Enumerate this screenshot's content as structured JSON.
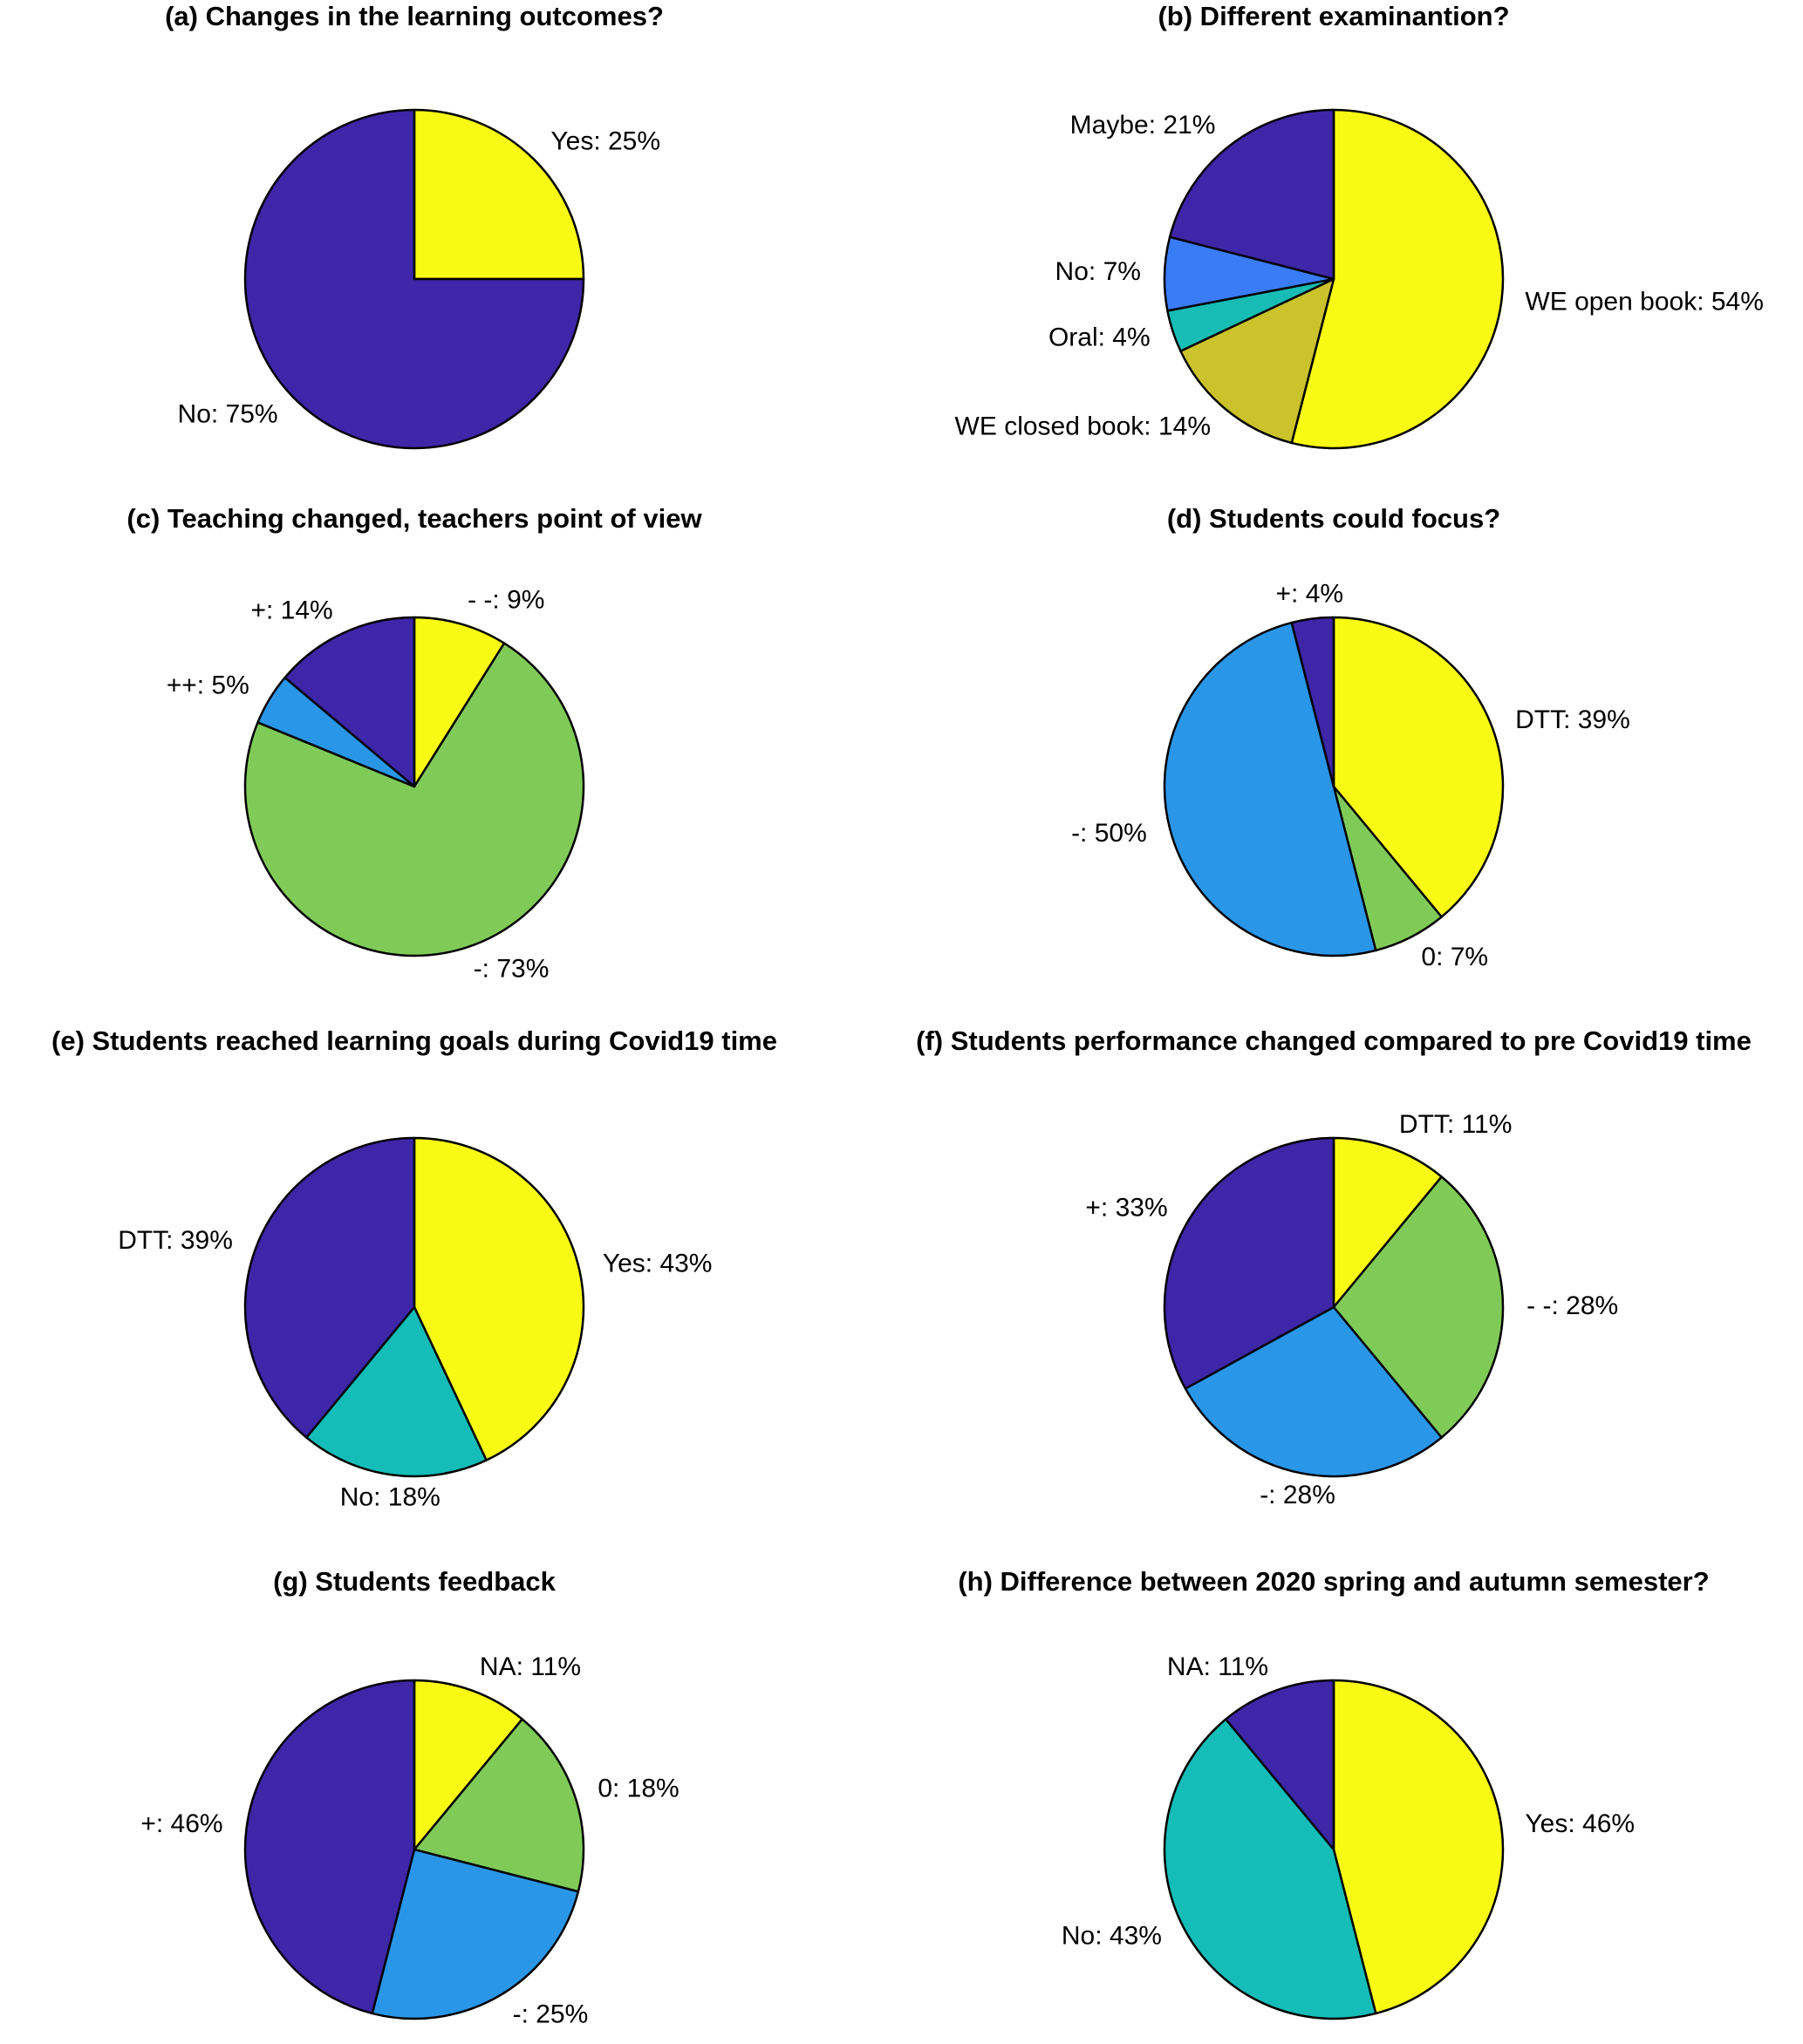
{
  "chart_data": [
    {
      "type": "pie",
      "title": "(a) Changes in the learning outcomes?",
      "slices": [
        {
          "label": "Yes: 25%",
          "name": "Yes",
          "value": 25,
          "color": "#f9fa14"
        },
        {
          "label": "No: 75%",
          "name": "No",
          "value": 75,
          "color": "#3e26a8"
        }
      ]
    },
    {
      "type": "pie",
      "title": "(b) Different examinantion?",
      "slices": [
        {
          "label": "WE open book: 54%",
          "name": "WE open book",
          "value": 54,
          "color": "#f9fa14"
        },
        {
          "label": "WE closed book: 14%",
          "name": "WE closed book",
          "value": 14,
          "color": "#cbc22c"
        },
        {
          "label": "Oral: 4%",
          "name": "Oral",
          "value": 4,
          "color": "#17bdb5"
        },
        {
          "label": "No: 7%",
          "name": "No",
          "value": 7,
          "color": "#3a7cf6"
        },
        {
          "label": "Maybe: 21%",
          "name": "Maybe",
          "value": 21,
          "color": "#3e26a8"
        }
      ]
    },
    {
      "type": "pie",
      "title": "(c) Teaching changed, teachers point of view",
      "slices": [
        {
          "label": "- -: 9%",
          "name": "- -",
          "value": 9,
          "color": "#f9fa14"
        },
        {
          "label": "-: 73%",
          "name": "-",
          "value": 73,
          "color": "#80cb58"
        },
        {
          "label": "++: 5%",
          "name": "++",
          "value": 5,
          "color": "#2a96e8"
        },
        {
          "label": "+: 14%",
          "name": "+",
          "value": 14,
          "color": "#3e26a8"
        }
      ]
    },
    {
      "type": "pie",
      "title": "(d) Students could focus?",
      "slices": [
        {
          "label": "DTT: 39%",
          "name": "DTT",
          "value": 39,
          "color": "#f9fa14"
        },
        {
          "label": "0: 7%",
          "name": "0",
          "value": 7,
          "color": "#80cb58"
        },
        {
          "label": "-: 50%",
          "name": "-",
          "value": 50,
          "color": "#2a96e8"
        },
        {
          "label": "+: 4%",
          "name": "+",
          "value": 4,
          "color": "#3e26a8"
        }
      ]
    },
    {
      "type": "pie",
      "title": "(e) Students reached learning goals during Covid19 time",
      "slices": [
        {
          "label": "Yes: 43%",
          "name": "Yes",
          "value": 43,
          "color": "#f9fa14"
        },
        {
          "label": "No: 18%",
          "name": "No",
          "value": 18,
          "color": "#14bdb7"
        },
        {
          "label": "DTT: 39%",
          "name": "DTT",
          "value": 39,
          "color": "#3e26a8"
        }
      ]
    },
    {
      "type": "pie",
      "title": "(f) Students performance changed compared to pre Covid19 time",
      "slices": [
        {
          "label": "DTT: 11%",
          "name": "DTT",
          "value": 11,
          "color": "#f9fa14"
        },
        {
          "label": "-  -: 28%",
          "name": "- -",
          "value": 28,
          "color": "#80cb58"
        },
        {
          "label": "-: 28%",
          "name": "-",
          "value": 28,
          "color": "#2a96e8"
        },
        {
          "label": "+: 33%",
          "name": "+",
          "value": 33,
          "color": "#3e26a8"
        }
      ]
    },
    {
      "type": "pie",
      "title": "(g) Students feedback",
      "slices": [
        {
          "label": "NA: 11%",
          "name": "NA",
          "value": 11,
          "color": "#f9fa14"
        },
        {
          "label": "0: 18%",
          "name": "0",
          "value": 18,
          "color": "#80cb58"
        },
        {
          "label": "-: 25%",
          "name": "-",
          "value": 25,
          "color": "#2a96e8"
        },
        {
          "label": "+: 46%",
          "name": "+",
          "value": 46,
          "color": "#3e26a8"
        }
      ]
    },
    {
      "type": "pie",
      "title": "(h) Difference between 2020 spring and autumn semester?",
      "slices": [
        {
          "label": "Yes: 46%",
          "name": "Yes",
          "value": 46,
          "color": "#f9fa14"
        },
        {
          "label": "No: 43%",
          "name": "No",
          "value": 43,
          "color": "#14bdb7"
        },
        {
          "label": "NA: 11%",
          "name": "NA",
          "value": 11,
          "color": "#3e26a8"
        }
      ]
    }
  ]
}
